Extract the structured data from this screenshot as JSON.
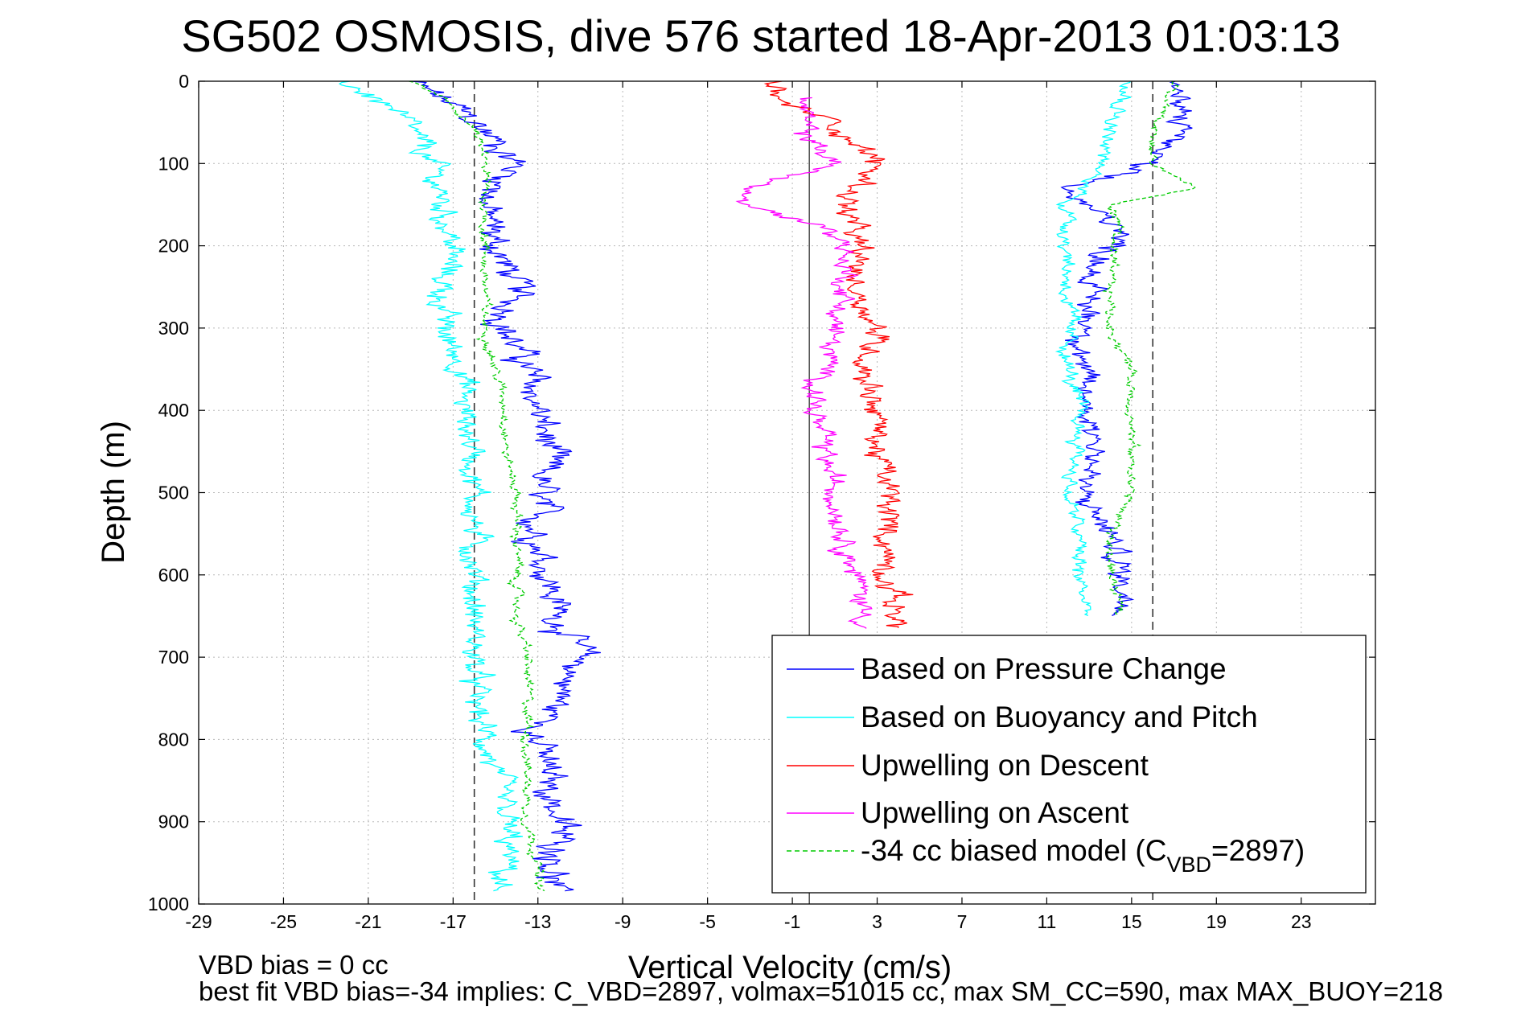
{
  "chart_data": {
    "type": "line",
    "title": "SG502 OSMOSIS, dive 576 started 18-Apr-2013 01:03:13",
    "xlabel": "Vertical Velocity (cm/s)",
    "ylabel": "Depth (m)",
    "xlim": [
      -29,
      26.5
    ],
    "ylim": [
      0,
      1000
    ],
    "y_reversed": true,
    "grid": true,
    "xticks": [
      -29,
      -25,
      -21,
      -17,
      -13,
      -9,
      -5,
      -1,
      3,
      7,
      11,
      15,
      19,
      23
    ],
    "yticks": [
      0,
      100,
      200,
      300,
      400,
      500,
      600,
      700,
      800,
      900,
      1000
    ],
    "reference_lines": {
      "dashed_x": [
        -16.0,
        16.0
      ],
      "solid_x": [
        -0.2
      ]
    },
    "legend": {
      "position": "bottom-right",
      "entries": [
        {
          "label": "Based on Pressure Change",
          "color": "#0000ff",
          "style": "solid"
        },
        {
          "label": "Based on Buoyancy and Pitch",
          "color": "#00ffff",
          "style": "solid"
        },
        {
          "label": "Upwelling on Descent",
          "color": "#ff0000",
          "style": "solid"
        },
        {
          "label": "Upwelling on Ascent",
          "color": "#ff00ff",
          "style": "solid"
        },
        {
          "label_main": "-34 cc biased model (C",
          "label_sub": "VBD",
          "label_tail": "=2897)",
          "color": "#00cc00",
          "style": "dashed"
        }
      ]
    },
    "series": [
      {
        "key": "desc_pressure",
        "color": "#0000ff",
        "dashed": false,
        "depth": [
          0,
          30,
          60,
          100,
          150,
          200,
          250,
          300,
          350,
          400,
          450,
          500,
          550,
          600,
          650,
          700,
          750,
          800,
          850,
          900,
          950,
          985
        ],
        "values": [
          -19,
          -17,
          -15.5,
          -14,
          -15.5,
          -15,
          -14,
          -14.5,
          -13.5,
          -13,
          -12.5,
          -13,
          -13,
          -12.5,
          -12,
          -11,
          -12,
          -13,
          -12.5,
          -12,
          -12,
          -12.5
        ],
        "noise": 1.0
      },
      {
        "key": "desc_buoyancy",
        "color": "#00ffff",
        "dashed": false,
        "depth": [
          0,
          30,
          60,
          100,
          150,
          200,
          250,
          300,
          350,
          400,
          450,
          500,
          550,
          600,
          650,
          700,
          750,
          800,
          850,
          900,
          950,
          985
        ],
        "values": [
          -22,
          -20,
          -19,
          -18,
          -17.5,
          -17,
          -17.5,
          -17.5,
          -16.5,
          -16.5,
          -16,
          -16,
          -16,
          -16,
          -16,
          -16,
          -16,
          -15.5,
          -15,
          -14.5,
          -14.5,
          -15
        ],
        "noise": 0.8
      },
      {
        "key": "desc_model",
        "color": "#00cc00",
        "dashed": true,
        "depth": [
          0,
          30,
          60,
          100,
          150,
          200,
          250,
          300,
          350,
          400,
          450,
          500,
          550,
          600,
          650,
          700,
          750,
          800,
          850,
          900,
          950,
          985
        ],
        "values": [
          -19,
          -17,
          -16,
          -15.5,
          -15.5,
          -15.5,
          -15.5,
          -15.5,
          -15,
          -14.5,
          -14.5,
          -14,
          -14,
          -14,
          -14,
          -13.5,
          -13.5,
          -13.5,
          -13.5,
          -13.5,
          -13,
          -13
        ],
        "noise": 0.3
      },
      {
        "key": "upwelling_descent",
        "color": "#ff0000",
        "dashed": false,
        "depth": [
          0,
          20,
          50,
          100,
          150,
          200,
          250,
          300,
          350,
          400,
          450,
          500,
          550,
          600,
          650,
          700,
          750,
          800,
          850,
          900,
          950,
          990
        ],
        "values": [
          -1.5,
          -2,
          1,
          3,
          1.5,
          2,
          2,
          3,
          2.5,
          3,
          3,
          3.5,
          3.5,
          3.5,
          4,
          4,
          4,
          4,
          4,
          4,
          4,
          4
        ],
        "noise": 0.8,
        "maxDepth": 665
      },
      {
        "key": "upwelling_ascent",
        "color": "#ff00ff",
        "dashed": false,
        "depth": [
          20,
          60,
          100,
          130,
          150,
          180,
          200,
          250,
          300,
          350,
          400,
          450,
          500,
          550,
          600,
          650,
          700,
          750,
          800,
          850,
          900,
          950,
          990
        ],
        "values": [
          -0.5,
          -0.5,
          1,
          -3,
          -3.5,
          1,
          1.5,
          1.5,
          1,
          0.5,
          0,
          0.5,
          1,
          1.5,
          2,
          2.5,
          2.5,
          2.5,
          2.5,
          2.5,
          2.5,
          2.5,
          2.5
        ],
        "noise": 0.7,
        "maxDepth": 665
      },
      {
        "key": "asc_pressure",
        "color": "#0000ff",
        "dashed": false,
        "depth": [
          0,
          30,
          60,
          100,
          130,
          150,
          180,
          200,
          250,
          300,
          350,
          400,
          450,
          500,
          550,
          600,
          650
        ],
        "values": [
          17,
          17,
          17.5,
          15.5,
          12,
          12.5,
          15,
          14,
          13,
          13,
          12.5,
          13,
          13.5,
          12.5,
          14,
          14.5,
          15
        ],
        "noise": 0.8,
        "maxDepth": 665
      },
      {
        "key": "asc_buoyancy",
        "color": "#00ffff",
        "dashed": false,
        "depth": [
          0,
          30,
          60,
          100,
          140,
          150,
          180,
          200,
          250,
          300,
          350,
          400,
          450,
          500,
          550,
          600,
          650
        ],
        "values": [
          15,
          14.5,
          14,
          13.5,
          12.5,
          12,
          12,
          12,
          12,
          12,
          12,
          12.5,
          12.5,
          12,
          12.5,
          12.5,
          13
        ],
        "noise": 0.5,
        "maxDepth": 665
      },
      {
        "key": "asc_model",
        "color": "#00cc00",
        "dashed": true,
        "depth": [
          0,
          30,
          60,
          100,
          130,
          150,
          180,
          200,
          250,
          300,
          350,
          400,
          450,
          500,
          550,
          600,
          650
        ],
        "values": [
          17,
          16.5,
          16,
          16,
          18,
          14,
          14.5,
          14,
          14,
          14,
          15,
          15,
          15,
          15,
          14,
          14,
          14.5
        ],
        "noise": 0.3,
        "maxDepth": 665
      }
    ],
    "annotations": [
      "VBD bias = 0 cc",
      "best fit VBD bias=-34 implies: C_VBD=2897, volmax=51015 cc, max SM_CC=590, max MAX_BUOY=218"
    ]
  }
}
